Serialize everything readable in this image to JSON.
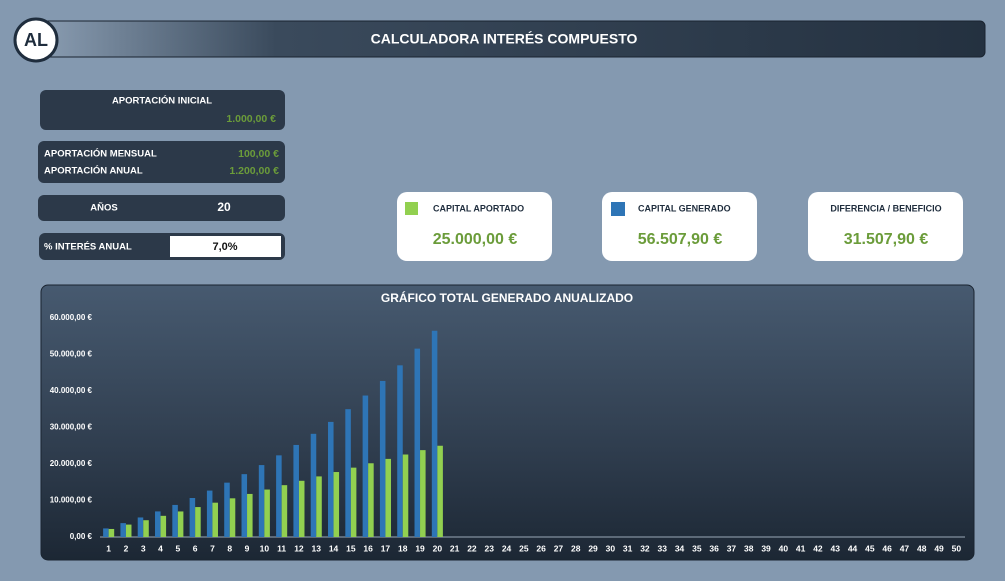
{
  "header": {
    "logo": "AL",
    "title": "CALCULADORA INTERÉS COMPUESTO"
  },
  "inputs": {
    "initial": {
      "label": "APORTACIÓN INICIAL",
      "value": "1.000,00 €"
    },
    "monthly": {
      "label": "APORTACIÓN MENSUAL",
      "value": "100,00 €"
    },
    "annual": {
      "label": "APORTACIÓN ANUAL",
      "value": "1.200,00 €"
    },
    "years": {
      "label": "AÑOS",
      "value": "20"
    },
    "interest": {
      "label": "% INTERÉS ANUAL",
      "value": "7,0%"
    }
  },
  "summary": {
    "contributed": "25.000,00 €",
    "generated": "56.507,90 €",
    "difference": {
      "label": "DIFERENCIA / BENEFICIO",
      "value": "31.507,90 €"
    }
  },
  "chart_data": {
    "type": "bar",
    "title": "GRÁFICO TOTAL GENERADO ANUALIZADO",
    "categories": [
      "1",
      "2",
      "3",
      "4",
      "5",
      "6",
      "7",
      "8",
      "9",
      "10",
      "11",
      "12",
      "13",
      "14",
      "15",
      "16",
      "17",
      "18",
      "19",
      "20",
      "21",
      "22",
      "23",
      "24",
      "25",
      "26",
      "27",
      "28",
      "29",
      "30",
      "31",
      "32",
      "33",
      "34",
      "35",
      "36",
      "37",
      "38",
      "39",
      "40",
      "41",
      "42",
      "43",
      "44",
      "45",
      "46",
      "47",
      "48",
      "49",
      "50"
    ],
    "series": [
      {
        "name": "CAPITAL GENERADO",
        "color": "#2e75b6",
        "values": [
          2354,
          3802.8,
          5353,
          7011.7,
          8786.5,
          10685.6,
          12717.6,
          14891.8,
          17218.2,
          19707.5,
          22371,
          25221,
          28270.5,
          31533.4,
          35024.7,
          38760.4,
          42757.6,
          47034.6,
          51611,
          56507.9,
          null,
          null,
          null,
          null,
          null,
          null,
          null,
          null,
          null,
          null,
          null,
          null,
          null,
          null,
          null,
          null,
          null,
          null,
          null,
          null,
          null,
          null,
          null,
          null,
          null,
          null,
          null,
          null,
          null,
          null
        ]
      },
      {
        "name": "CAPITAL APORTADO",
        "color": "#92d050",
        "values": [
          2200,
          3400,
          4600,
          5800,
          7000,
          8200,
          9400,
          10600,
          11800,
          13000,
          14200,
          15400,
          16600,
          17800,
          19000,
          20200,
          21400,
          22600,
          23800,
          25000,
          null,
          null,
          null,
          null,
          null,
          null,
          null,
          null,
          null,
          null,
          null,
          null,
          null,
          null,
          null,
          null,
          null,
          null,
          null,
          null,
          null,
          null,
          null,
          null,
          null,
          null,
          null,
          null,
          null,
          null
        ]
      }
    ],
    "ylim": [
      0,
      60000
    ],
    "yticks": [
      {
        "value": 0,
        "label": "0,00 €"
      },
      {
        "value": 10000,
        "label": "10.000,00 €"
      },
      {
        "value": 20000,
        "label": "20.000,00 €"
      },
      {
        "value": 30000,
        "label": "30.000,00 €"
      },
      {
        "value": 40000,
        "label": "40.000,00 €"
      },
      {
        "value": 50000,
        "label": "50.000,00 €"
      },
      {
        "value": 60000,
        "label": "60.000,00 €"
      }
    ],
    "grid": false
  }
}
